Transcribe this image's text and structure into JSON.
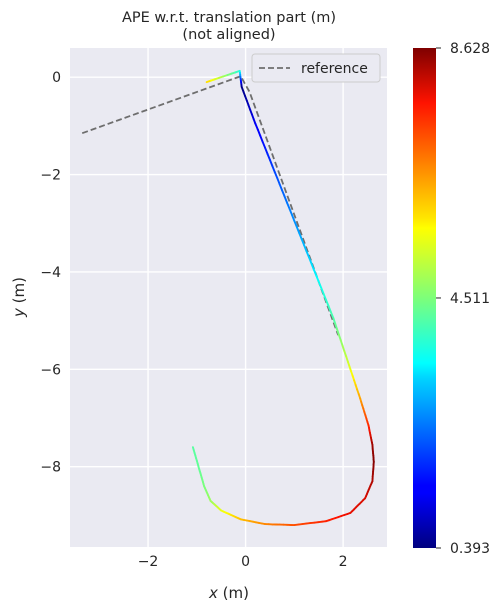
{
  "chart_data": {
    "type": "line",
    "title": "APE w.r.t. translation part (m)",
    "subtitle": "(not aligned)",
    "xlabel_var": "x",
    "xlabel_unit": " (m)",
    "ylabel_var": "y",
    "ylabel_unit": " (m)",
    "xlim": [
      -3.6,
      2.9
    ],
    "ylim": [
      -9.65,
      0.6
    ],
    "x_ticks": [
      -2,
      0,
      2
    ],
    "x_tick_labels": [
      "−2",
      "0",
      "2"
    ],
    "y_ticks": [
      0,
      -2,
      -4,
      -6,
      -8
    ],
    "y_tick_labels": [
      "0",
      "−2",
      "−4",
      "−6",
      "−8"
    ],
    "grid": true,
    "legend_position": "top-right",
    "series": [
      {
        "name": "reference",
        "style": "dashed",
        "color": "#6e6e6e",
        "x": [
          -3.35,
          -0.1,
          0.08,
          1.9
        ],
        "y": [
          -1.15,
          0.02,
          -0.3,
          -5.3
        ]
      },
      {
        "style": "colormap",
        "x": [
          -0.8,
          -0.12,
          -0.08,
          0.2,
          0.6,
          1.0,
          1.4,
          1.8,
          2.1,
          2.35,
          2.52,
          2.6,
          2.63,
          2.6,
          2.45,
          2.15,
          1.65,
          1.0,
          0.4,
          -0.1,
          -0.5,
          -0.72,
          -0.85,
          -0.95,
          -1.08
        ],
        "y": [
          -0.1,
          0.13,
          -0.2,
          -0.95,
          -1.95,
          -2.95,
          -3.95,
          -4.95,
          -5.85,
          -6.6,
          -7.15,
          -7.55,
          -7.9,
          -8.3,
          -8.65,
          -8.95,
          -9.12,
          -9.2,
          -9.18,
          -9.08,
          -8.9,
          -8.7,
          -8.4,
          -8.05,
          -7.6
        ],
        "ape": [
          6.0,
          3.8,
          0.4,
          1.2,
          2.0,
          2.6,
          3.3,
          4.1,
          5.2,
          6.4,
          7.5,
          8.4,
          8.6,
          8.3,
          8.0,
          7.9,
          7.6,
          7.2,
          6.7,
          6.2,
          5.5,
          4.8,
          4.5,
          4.3,
          4.2
        ]
      }
    ],
    "colorbar": {
      "min": 0.393,
      "max": 8.628,
      "ticks": [
        0.393,
        4.511,
        8.628
      ],
      "tick_labels": [
        "0.393",
        "4.511",
        "8.628"
      ],
      "colormap": "jet"
    }
  }
}
